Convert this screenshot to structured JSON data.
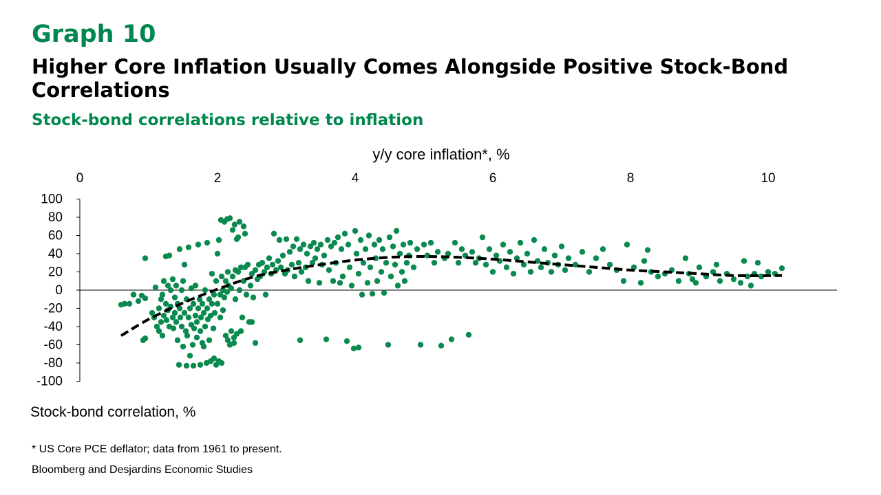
{
  "header": {
    "graph_label": "Graph 10",
    "title": "Higher Core Inflation Usually Comes Alongside Positive Stock-Bond Correlations",
    "subtitle": "Stock-bond correlations relative to inflation"
  },
  "footer": {
    "note": "* US Core PCE deflator; data from 1961 to present.",
    "source": "Bloomberg and Desjardins Economic Studies"
  },
  "colors": {
    "accent": "#00874E",
    "points": "#0A8A4E",
    "trend": "#000000"
  },
  "chart_data": {
    "type": "scatter",
    "xlabel": "y/y core inflation*, %",
    "ylabel": "Stock-bond correlation, %",
    "x_axis_position": "top",
    "xlim": [
      0,
      11
    ],
    "ylim": [
      -100,
      100
    ],
    "xticks": [
      0,
      2,
      4,
      6,
      8,
      10
    ],
    "yticks": [
      100,
      80,
      60,
      40,
      20,
      0,
      -20,
      -40,
      -60,
      -80,
      -100
    ],
    "grid": false,
    "legend": "none",
    "points": [
      [
        0.6,
        -16
      ],
      [
        0.65,
        -15
      ],
      [
        0.72,
        -15
      ],
      [
        0.78,
        -5
      ],
      [
        0.85,
        -12
      ],
      [
        0.9,
        -6
      ],
      [
        0.95,
        -9
      ],
      [
        0.92,
        -55
      ],
      [
        0.95,
        -53
      ],
      [
        0.95,
        35
      ],
      [
        1.05,
        -25
      ],
      [
        1.08,
        -30
      ],
      [
        1.1,
        3
      ],
      [
        1.12,
        -40
      ],
      [
        1.15,
        -20
      ],
      [
        1.15,
        -45
      ],
      [
        1.18,
        -10
      ],
      [
        1.18,
        -35
      ],
      [
        1.2,
        -5
      ],
      [
        1.2,
        -50
      ],
      [
        1.22,
        10
      ],
      [
        1.22,
        -28
      ],
      [
        1.25,
        -15
      ],
      [
        1.25,
        37
      ],
      [
        1.26,
        -33
      ],
      [
        1.28,
        5
      ],
      [
        1.28,
        -22
      ],
      [
        1.3,
        -40
      ],
      [
        1.3,
        38
      ],
      [
        1.32,
        0
      ],
      [
        1.32,
        -18
      ],
      [
        1.35,
        -30
      ],
      [
        1.35,
        12
      ],
      [
        1.36,
        -42
      ],
      [
        1.38,
        -8
      ],
      [
        1.38,
        -25
      ],
      [
        1.4,
        -35
      ],
      [
        1.4,
        5
      ],
      [
        1.42,
        -15
      ],
      [
        1.42,
        -55
      ],
      [
        1.44,
        -82
      ],
      [
        1.45,
        -20
      ],
      [
        1.45,
        45
      ],
      [
        1.46,
        -30
      ],
      [
        1.48,
        0
      ],
      [
        1.48,
        -40
      ],
      [
        1.5,
        -62
      ],
      [
        1.5,
        10
      ],
      [
        1.52,
        -25
      ],
      [
        1.52,
        28
      ],
      [
        1.54,
        -45
      ],
      [
        1.55,
        -10
      ],
      [
        1.55,
        -83
      ],
      [
        1.56,
        -50
      ],
      [
        1.58,
        -30
      ],
      [
        1.58,
        47
      ],
      [
        1.6,
        -20
      ],
      [
        1.6,
        -72
      ],
      [
        1.62,
        2
      ],
      [
        1.62,
        -38
      ],
      [
        1.64,
        -60
      ],
      [
        1.65,
        -15
      ],
      [
        1.65,
        -83
      ],
      [
        1.66,
        -42
      ],
      [
        1.68,
        -28
      ],
      [
        1.68,
        5
      ],
      [
        1.7,
        -35
      ],
      [
        1.7,
        -52
      ],
      [
        1.72,
        -20
      ],
      [
        1.72,
        50
      ],
      [
        1.74,
        -10
      ],
      [
        1.75,
        -45
      ],
      [
        1.75,
        -82
      ],
      [
        1.76,
        -30
      ],
      [
        1.78,
        -58
      ],
      [
        1.78,
        -15
      ],
      [
        1.8,
        -25
      ],
      [
        1.8,
        -62
      ],
      [
        1.82,
        -40
      ],
      [
        1.82,
        0
      ],
      [
        1.84,
        -80
      ],
      [
        1.85,
        -20
      ],
      [
        1.85,
        52
      ],
      [
        1.86,
        -32
      ],
      [
        1.88,
        -10
      ],
      [
        1.88,
        -55
      ],
      [
        1.9,
        -28
      ],
      [
        1.9,
        -78
      ],
      [
        1.92,
        -15
      ],
      [
        1.92,
        18
      ],
      [
        1.94,
        -42
      ],
      [
        1.95,
        -5
      ],
      [
        1.95,
        -75
      ],
      [
        1.96,
        -25
      ],
      [
        1.98,
        10
      ],
      [
        1.98,
        -82
      ],
      [
        2.0,
        -15
      ],
      [
        2.0,
        40
      ],
      [
        2.02,
        55
      ],
      [
        2.02,
        -78
      ],
      [
        2.04,
        -5
      ],
      [
        2.04,
        -30
      ],
      [
        2.05,
        77
      ],
      [
        2.06,
        15
      ],
      [
        2.06,
        -80
      ],
      [
        2.08,
        0
      ],
      [
        2.08,
        -22
      ],
      [
        2.1,
        75
      ],
      [
        2.1,
        -8
      ],
      [
        2.12,
        10
      ],
      [
        2.12,
        -50
      ],
      [
        2.14,
        78
      ],
      [
        2.14,
        -2
      ],
      [
        2.15,
        20
      ],
      [
        2.15,
        -55
      ],
      [
        2.16,
        5
      ],
      [
        2.18,
        -60
      ],
      [
        2.18,
        79
      ],
      [
        2.2,
        2
      ],
      [
        2.2,
        -45
      ],
      [
        2.22,
        15
      ],
      [
        2.22,
        66
      ],
      [
        2.24,
        -58
      ],
      [
        2.24,
        -52
      ],
      [
        2.25,
        72
      ],
      [
        2.26,
        22
      ],
      [
        2.26,
        -10
      ],
      [
        2.28,
        -48
      ],
      [
        2.28,
        56
      ],
      [
        2.3,
        20
      ],
      [
        2.3,
        58
      ],
      [
        2.32,
        0
      ],
      [
        2.32,
        75
      ],
      [
        2.34,
        25
      ],
      [
        2.34,
        -45
      ],
      [
        2.36,
        -30
      ],
      [
        2.38,
        70
      ],
      [
        2.38,
        10
      ],
      [
        2.4,
        62
      ],
      [
        2.4,
        25
      ],
      [
        2.42,
        -5
      ],
      [
        2.44,
        28
      ],
      [
        2.46,
        -35
      ],
      [
        2.48,
        5
      ],
      [
        2.5,
        -35
      ],
      [
        2.5,
        18
      ],
      [
        2.52,
        -8
      ],
      [
        2.55,
        22
      ],
      [
        2.55,
        -58
      ],
      [
        2.58,
        12
      ],
      [
        2.6,
        28
      ],
      [
        2.62,
        15
      ],
      [
        2.65,
        30
      ],
      [
        2.68,
        20
      ],
      [
        2.7,
        -5
      ],
      [
        2.72,
        25
      ],
      [
        2.75,
        35
      ],
      [
        2.78,
        18
      ],
      [
        2.8,
        28
      ],
      [
        2.82,
        62
      ],
      [
        2.85,
        22
      ],
      [
        2.88,
        32
      ],
      [
        2.9,
        55
      ],
      [
        2.92,
        25
      ],
      [
        2.95,
        38
      ],
      [
        2.98,
        18
      ],
      [
        3.0,
        56
      ],
      [
        3.02,
        22
      ],
      [
        3.05,
        42
      ],
      [
        3.08,
        28
      ],
      [
        3.1,
        48
      ],
      [
        3.12,
        15
      ],
      [
        3.15,
        56
      ],
      [
        3.18,
        30
      ],
      [
        3.2,
        -55
      ],
      [
        3.2,
        45
      ],
      [
        3.22,
        20
      ],
      [
        3.25,
        50
      ],
      [
        3.28,
        25
      ],
      [
        3.3,
        40
      ],
      [
        3.32,
        10
      ],
      [
        3.35,
        48
      ],
      [
        3.38,
        30
      ],
      [
        3.4,
        52
      ],
      [
        3.42,
        35
      ],
      [
        3.45,
        45
      ],
      [
        3.48,
        8
      ],
      [
        3.5,
        50
      ],
      [
        3.52,
        28
      ],
      [
        3.55,
        38
      ],
      [
        3.58,
        -54
      ],
      [
        3.6,
        55
      ],
      [
        3.62,
        22
      ],
      [
        3.65,
        48
      ],
      [
        3.68,
        10
      ],
      [
        3.7,
        52
      ],
      [
        3.72,
        30
      ],
      [
        3.75,
        58
      ],
      [
        3.78,
        8
      ],
      [
        3.8,
        45
      ],
      [
        3.82,
        15
      ],
      [
        3.85,
        62
      ],
      [
        3.88,
        -56
      ],
      [
        3.9,
        50
      ],
      [
        3.92,
        25
      ],
      [
        3.95,
        5
      ],
      [
        3.98,
        -64
      ],
      [
        4.0,
        65
      ],
      [
        4.02,
        40
      ],
      [
        4.05,
        -63
      ],
      [
        4.05,
        18
      ],
      [
        4.08,
        55
      ],
      [
        4.1,
        -5
      ],
      [
        4.12,
        30
      ],
      [
        4.15,
        45
      ],
      [
        4.18,
        8
      ],
      [
        4.2,
        60
      ],
      [
        4.22,
        25
      ],
      [
        4.25,
        -4
      ],
      [
        4.28,
        50
      ],
      [
        4.3,
        35
      ],
      [
        4.32,
        10
      ],
      [
        4.35,
        55
      ],
      [
        4.38,
        20
      ],
      [
        4.4,
        45
      ],
      [
        4.42,
        -3
      ],
      [
        4.45,
        30
      ],
      [
        4.48,
        -60
      ],
      [
        4.5,
        58
      ],
      [
        4.52,
        15
      ],
      [
        4.55,
        48
      ],
      [
        4.58,
        28
      ],
      [
        4.6,
        65
      ],
      [
        4.62,
        5
      ],
      [
        4.65,
        40
      ],
      [
        4.68,
        20
      ],
      [
        4.7,
        50
      ],
      [
        4.72,
        10
      ],
      [
        4.75,
        30
      ],
      [
        4.78,
        38
      ],
      [
        4.8,
        52
      ],
      [
        4.85,
        25
      ],
      [
        4.9,
        45
      ],
      [
        4.95,
        -60
      ],
      [
        5.0,
        50
      ],
      [
        5.05,
        38
      ],
      [
        5.1,
        52
      ],
      [
        5.15,
        30
      ],
      [
        5.2,
        42
      ],
      [
        5.25,
        -61
      ],
      [
        5.3,
        35
      ],
      [
        5.35,
        40
      ],
      [
        5.4,
        -54
      ],
      [
        5.45,
        52
      ],
      [
        5.5,
        30
      ],
      [
        5.55,
        45
      ],
      [
        5.6,
        38
      ],
      [
        5.65,
        -49
      ],
      [
        5.7,
        42
      ],
      [
        5.75,
        30
      ],
      [
        5.8,
        35
      ],
      [
        5.85,
        58
      ],
      [
        5.9,
        28
      ],
      [
        5.95,
        45
      ],
      [
        6.0,
        20
      ],
      [
        6.05,
        38
      ],
      [
        6.1,
        32
      ],
      [
        6.15,
        50
      ],
      [
        6.2,
        25
      ],
      [
        6.25,
        42
      ],
      [
        6.3,
        18
      ],
      [
        6.35,
        35
      ],
      [
        6.4,
        52
      ],
      [
        6.45,
        28
      ],
      [
        6.5,
        40
      ],
      [
        6.55,
        20
      ],
      [
        6.6,
        55
      ],
      [
        6.65,
        32
      ],
      [
        6.7,
        25
      ],
      [
        6.75,
        45
      ],
      [
        6.8,
        30
      ],
      [
        6.85,
        20
      ],
      [
        6.9,
        38
      ],
      [
        6.95,
        28
      ],
      [
        7.0,
        48
      ],
      [
        7.05,
        22
      ],
      [
        7.1,
        35
      ],
      [
        7.2,
        28
      ],
      [
        7.3,
        42
      ],
      [
        7.4,
        20
      ],
      [
        7.5,
        35
      ],
      [
        7.6,
        45
      ],
      [
        7.7,
        28
      ],
      [
        7.8,
        22
      ],
      [
        7.9,
        10
      ],
      [
        7.95,
        50
      ],
      [
        8.05,
        25
      ],
      [
        8.15,
        8
      ],
      [
        8.2,
        32
      ],
      [
        8.25,
        44
      ],
      [
        8.3,
        20
      ],
      [
        8.4,
        15
      ],
      [
        8.5,
        18
      ],
      [
        8.6,
        22
      ],
      [
        8.7,
        10
      ],
      [
        8.8,
        35
      ],
      [
        8.85,
        18
      ],
      [
        8.9,
        12
      ],
      [
        8.95,
        8
      ],
      [
        9.0,
        25
      ],
      [
        9.1,
        15
      ],
      [
        9.2,
        20
      ],
      [
        9.25,
        28
      ],
      [
        9.3,
        10
      ],
      [
        9.4,
        18
      ],
      [
        9.5,
        12
      ],
      [
        9.6,
        8
      ],
      [
        9.65,
        32
      ],
      [
        9.7,
        15
      ],
      [
        9.75,
        5
      ],
      [
        9.8,
        18
      ],
      [
        9.85,
        30
      ],
      [
        9.9,
        15
      ],
      [
        10.0,
        20
      ],
      [
        10.1,
        18
      ],
      [
        10.2,
        24
      ]
    ],
    "trend": [
      [
        0.6,
        -50
      ],
      [
        1.0,
        -32
      ],
      [
        1.5,
        -14
      ],
      [
        2.0,
        1
      ],
      [
        2.5,
        14
      ],
      [
        3.0,
        22
      ],
      [
        3.5,
        28
      ],
      [
        4.0,
        33
      ],
      [
        4.5,
        36
      ],
      [
        5.0,
        37
      ],
      [
        5.5,
        36
      ],
      [
        6.0,
        34
      ],
      [
        6.5,
        31
      ],
      [
        7.0,
        28
      ],
      [
        7.5,
        25
      ],
      [
        8.0,
        22
      ],
      [
        8.5,
        20
      ],
      [
        9.0,
        18
      ],
      [
        9.5,
        16
      ],
      [
        10.2,
        16
      ]
    ]
  }
}
